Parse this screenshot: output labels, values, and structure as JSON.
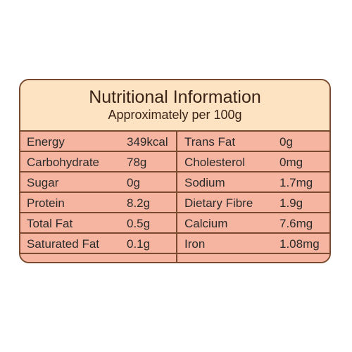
{
  "header": {
    "title": "Nutritional Information",
    "subtitle": "Approximately per 100g"
  },
  "rows": [
    {
      "left_name": "Energy",
      "left_value": "349kcal",
      "right_name": "Trans Fat",
      "right_value": "0g"
    },
    {
      "left_name": "Carbohydrate",
      "left_value": "78g",
      "right_name": "Cholesterol",
      "right_value": "0mg"
    },
    {
      "left_name": "Sugar",
      "left_value": "0g",
      "right_name": "Sodium",
      "right_value": "1.7mg"
    },
    {
      "left_name": "Protein",
      "left_value": "8.2g",
      "right_name": "Dietary Fibre",
      "right_value": "1.9g"
    },
    {
      "left_name": "Total Fat",
      "left_value": "0.5g",
      "right_name": "Calcium",
      "right_value": "7.6mg"
    },
    {
      "left_name": "Saturated Fat",
      "left_value": "0.1g",
      "right_name": "Iron",
      "right_value": "1.08mg"
    }
  ],
  "colors": {
    "border": "#7a4a2e",
    "header_bg": "#fde3c2",
    "table_bg": "#f6b5a1"
  }
}
